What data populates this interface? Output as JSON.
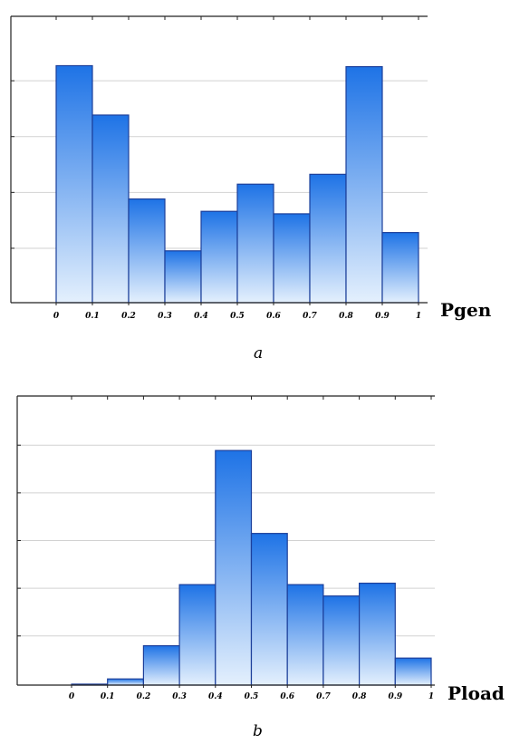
{
  "colors": {
    "bar_top": "#1e73e6",
    "bar_bottom": "#e4f0fd",
    "bar_stroke": "#1c3f9a",
    "grid": "#d2d2d2",
    "axis": "#222222"
  },
  "chart_data": [
    {
      "type": "bar",
      "panel_label": "a",
      "xlabel": "Pgen",
      "ticks": [
        "0",
        "0.1",
        "0.2",
        "0.3",
        "0.4",
        "0.5",
        "0.6",
        "0.7",
        "0.8",
        "0.9",
        "1"
      ],
      "bins": [
        [
          0,
          0.1
        ],
        [
          0.1,
          0.2
        ],
        [
          0.2,
          0.3
        ],
        [
          0.3,
          0.4
        ],
        [
          0.4,
          0.5
        ],
        [
          0.5,
          0.6
        ],
        [
          0.6,
          0.7
        ],
        [
          0.7,
          0.8
        ],
        [
          0.8,
          0.9
        ],
        [
          0.9,
          1.0
        ]
      ],
      "values": [
        4.8,
        3.8,
        2.1,
        1.05,
        1.85,
        2.4,
        1.8,
        2.6,
        4.78,
        1.42
      ],
      "ylim": [
        0,
        5.8
      ],
      "grid": true,
      "yticks_labeled": false
    },
    {
      "type": "bar",
      "panel_label": "b",
      "xlabel": "Pload",
      "ticks": [
        "0",
        "0.1",
        "0.2",
        "0.3",
        "0.4",
        "0.5",
        "0.6",
        "0.7",
        "0.8",
        "0.9",
        "1"
      ],
      "bins": [
        [
          0,
          0.1
        ],
        [
          0.1,
          0.2
        ],
        [
          0.2,
          0.3
        ],
        [
          0.3,
          0.4
        ],
        [
          0.4,
          0.5
        ],
        [
          0.5,
          0.6
        ],
        [
          0.6,
          0.7
        ],
        [
          0.7,
          0.8
        ],
        [
          0.8,
          0.9
        ],
        [
          0.9,
          1.0
        ]
      ],
      "values": [
        0.02,
        0.13,
        0.83,
        2.12,
        4.95,
        3.2,
        2.12,
        1.88,
        2.15,
        0.57
      ],
      "ylim": [
        0,
        6.1
      ],
      "grid": true,
      "yticks_labeled": false
    }
  ]
}
